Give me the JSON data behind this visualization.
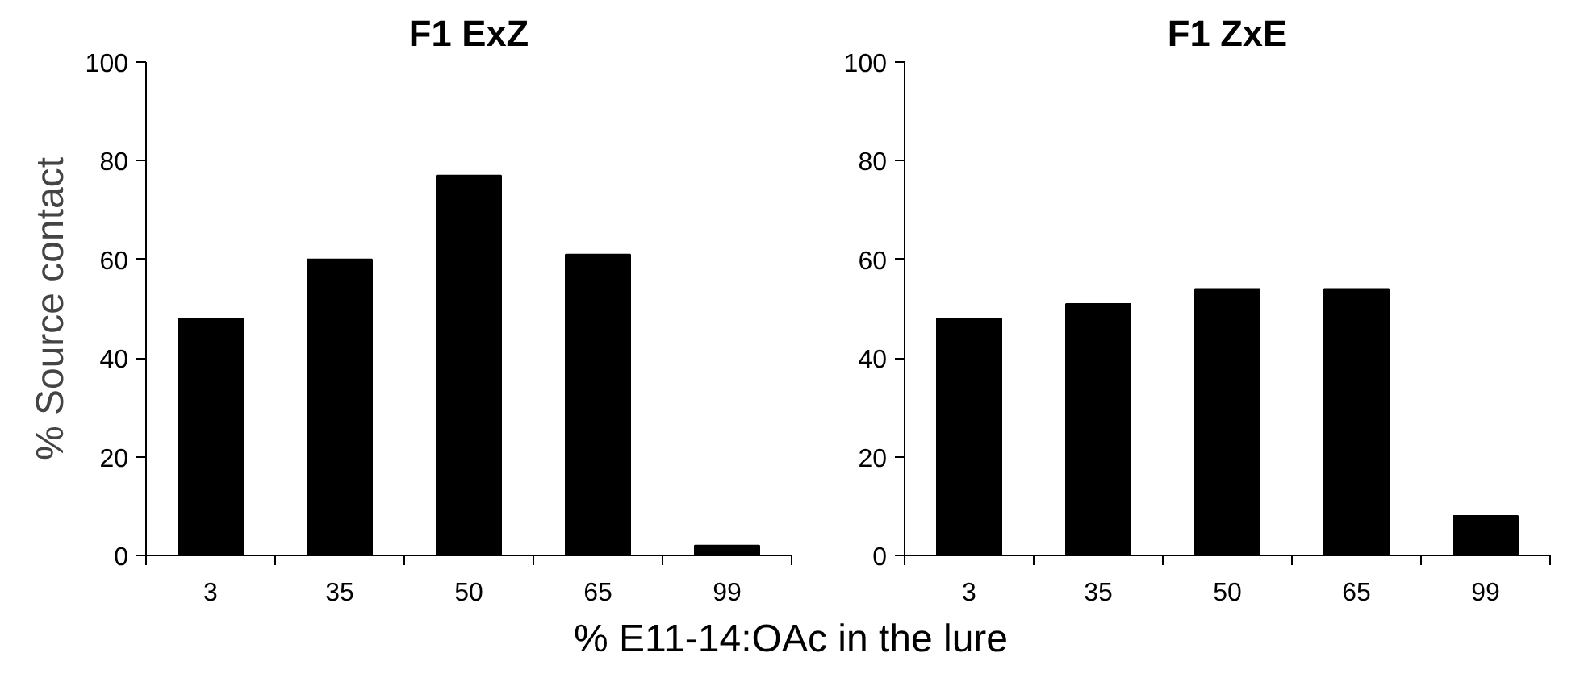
{
  "chart_data": [
    {
      "type": "bar",
      "title": "F1 ExZ",
      "ylabel": "% Source contact",
      "xlabel": "% E11-14:OAc in the lure",
      "categories": [
        "3",
        "35",
        "50",
        "65",
        "99"
      ],
      "values": [
        48,
        60,
        77,
        61,
        2
      ],
      "color": "#000000",
      "ylim": [
        0,
        100
      ],
      "yticks": [
        0,
        20,
        40,
        60,
        80,
        100
      ],
      "grid": false
    },
    {
      "type": "bar",
      "title": "F1 ZxE",
      "categories": [
        "3",
        "35",
        "50",
        "65",
        "99"
      ],
      "values": [
        48,
        51,
        54,
        54,
        8
      ],
      "color": "#000000",
      "ylim": [
        0,
        100
      ],
      "yticks": [
        0,
        20,
        40,
        60,
        80,
        100
      ],
      "grid": false
    }
  ]
}
